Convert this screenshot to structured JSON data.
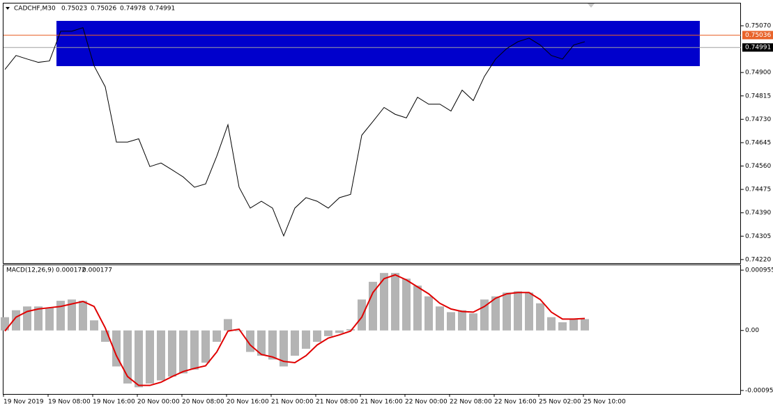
{
  "chart_data": [
    {
      "type": "line",
      "symbol": "CADCHF,M30",
      "ohlc": [
        0.75023,
        0.75026,
        0.74978,
        0.74991
      ],
      "categories": [
        "19 Nov 2019",
        null,
        null,
        null,
        "19 Nov 08:00",
        null,
        null,
        null,
        "19 Nov 16:00",
        null,
        null,
        null,
        "20 Nov 00:00",
        null,
        null,
        null,
        "20 Nov 08:00",
        null,
        null,
        null,
        "20 Nov 16:00",
        null,
        null,
        null,
        "21 Nov 00:00",
        null,
        null,
        null,
        "21 Nov 08:00",
        null,
        null,
        null,
        "21 Nov 16:00",
        null,
        null,
        null,
        "22 Nov 00:00",
        null,
        null,
        null,
        "22 Nov 08:00",
        null,
        null,
        null,
        "22 Nov 16:00",
        null,
        null,
        null,
        "25 Nov 02:00",
        null,
        null,
        null,
        "25 Nov 10:00"
      ],
      "values": [
        0.74911,
        0.74962,
        0.74949,
        0.74937,
        0.74942,
        0.7505,
        0.7505,
        0.75063,
        0.74924,
        0.74848,
        0.74647,
        0.74647,
        0.74659,
        0.74558,
        0.74571,
        0.74546,
        0.7452,
        0.74483,
        0.74495,
        0.74596,
        0.7471,
        0.74483,
        0.74407,
        0.74432,
        0.74407,
        0.74306,
        0.74407,
        0.74445,
        0.74432,
        0.74407,
        0.74445,
        0.74457,
        0.74672,
        0.74722,
        0.74773,
        0.74748,
        0.74735,
        0.7481,
        0.74785,
        0.74785,
        0.7476,
        0.74836,
        0.74798,
        0.74886,
        0.74949,
        0.74987,
        0.75012,
        0.75025,
        0.75,
        0.74962,
        0.74949,
        0.75,
        0.75012
      ],
      "color": "#000000",
      "ylim": [
        0.74207,
        0.75151
      ],
      "yticks": [
        {
          "value": 0.7507,
          "label": "0.75070"
        },
        {
          "value": 0.749,
          "label": "0.74900"
        },
        0.74815,
        {
          "value": 0.7473,
          "label": "0.74730"
        },
        0.74645,
        {
          "value": 0.7456,
          "label": "0.74560"
        },
        0.74475,
        {
          "value": 0.7439,
          "label": "0.74390"
        },
        0.74305,
        {
          "value": 0.7422,
          "label": "0.74220"
        }
      ],
      "levels": [
        {
          "value": 0.75036,
          "color": "#e8632a"
        },
        {
          "value": 0.74991,
          "color": "#000000"
        }
      ]
    },
    {
      "type": "macd",
      "title": "MACD(12,26,9)",
      "indicator_values": [
        0.000172,
        0.000177
      ],
      "values": [
        0.00021,
        0.00032,
        0.00038,
        0.00038,
        0.00036,
        0.00047,
        0.00049,
        0.00047,
        0.00016,
        -0.00018,
        -0.00057,
        -0.00084,
        -0.0009,
        -0.00084,
        -0.00079,
        -0.00073,
        -0.00068,
        -0.00062,
        -0.00051,
        -0.00018,
        0.00018,
        -1e-05,
        -0.00034,
        -0.0004,
        -0.00046,
        -0.00057,
        -0.0004,
        -0.00029,
        -0.00018,
        -9e-05,
        -4e-05,
        2e-05,
        0.00049,
        0.00077,
        0.00091,
        0.00091,
        0.00082,
        0.00071,
        0.00054,
        0.00038,
        0.00029,
        0.00032,
        0.00027,
        0.00049,
        0.00054,
        0.0006,
        0.00062,
        0.0006,
        0.00043,
        0.00021,
        0.00013,
        0.00018,
        0.00018
      ],
      "signal": [
        -1e-05,
        0.00021,
        0.0003,
        0.00034,
        0.00036,
        0.00038,
        0.00042,
        0.00046,
        0.00038,
        4e-05,
        -0.0004,
        -0.00073,
        -0.00087,
        -0.00087,
        -0.00082,
        -0.00073,
        -0.00065,
        -0.0006,
        -0.00056,
        -0.00034,
        -1e-05,
        2e-05,
        -0.00023,
        -0.00038,
        -0.00042,
        -0.00049,
        -0.00051,
        -0.0004,
        -0.00023,
        -0.00012,
        -7e-05,
        -1e-05,
        0.00021,
        0.0006,
        0.00082,
        0.00088,
        0.0008,
        0.00069,
        0.00058,
        0.00043,
        0.00034,
        0.0003,
        0.00029,
        0.00038,
        0.00051,
        0.00058,
        0.0006,
        0.0006,
        0.00049,
        0.00029,
        0.00018,
        0.00018,
        0.00019
      ],
      "color": "#b4b4b4",
      "signal_color": "#e00000",
      "ylim": [
        -0.001006,
        0.001033
      ],
      "yticks": [
        0.000955,
        {
          "value": 0,
          "label": "0.00"
        },
        -0.00095
      ]
    }
  ]
}
